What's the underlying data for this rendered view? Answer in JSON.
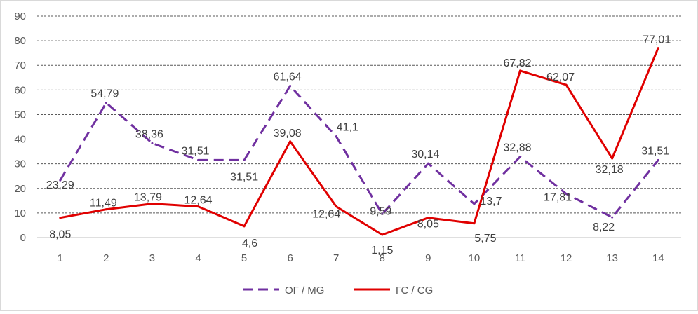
{
  "chart_data": {
    "type": "line",
    "title": "",
    "xlabel": "",
    "ylabel": "",
    "x": [
      "1",
      "2",
      "3",
      "4",
      "5",
      "6",
      "7",
      "8",
      "9",
      "10",
      "11",
      "12",
      "13",
      "14"
    ],
    "ylim": [
      0,
      90
    ],
    "yticks": [
      "0",
      "10",
      "20",
      "30",
      "40",
      "50",
      "60",
      "70",
      "80",
      "90"
    ],
    "grid": "horizontal-dashed",
    "legend_position": "bottom",
    "series": [
      {
        "name": "ОГ / MG",
        "color": "#7030a0",
        "line_style": "dashed",
        "values": [
          23.29,
          54.79,
          38.36,
          31.51,
          31.51,
          61.64,
          41.1,
          9.59,
          30.14,
          13.7,
          32.88,
          17.81,
          8.22,
          31.51
        ],
        "labels": [
          "23,29",
          "54,79",
          "38,36",
          "31,51",
          "31,51",
          "61,64",
          "41,1",
          "9,59",
          "30,14",
          "13,7",
          "32,88",
          "17,81",
          "8,22",
          "31,51"
        ]
      },
      {
        "name": "ГС / CG",
        "color": "#e00000",
        "line_style": "solid",
        "values": [
          8.05,
          11.49,
          13.79,
          12.64,
          4.6,
          39.08,
          12.64,
          1.15,
          8.05,
          5.75,
          67.82,
          62.07,
          32.18,
          77.01
        ],
        "labels": [
          "8,05",
          "11,49",
          "13,79",
          "12,64",
          "4,6",
          "39,08",
          "12,64",
          "1,15",
          "8,05",
          "5,75",
          "67,82",
          "62,07",
          "32,18",
          "77,01"
        ]
      }
    ]
  }
}
